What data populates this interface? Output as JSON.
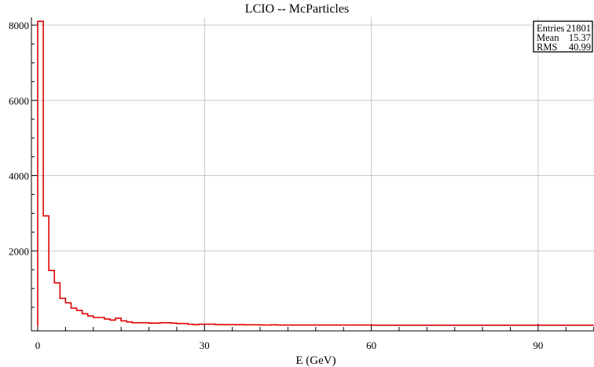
{
  "chart_data": {
    "type": "histogram",
    "title": "LCIO -- McParticles",
    "xlabel": "E (GeV)",
    "ylabel": "",
    "xlim": [
      0,
      100
    ],
    "ylim": [
      0,
      8100
    ],
    "x_ticks": [
      0,
      30,
      60,
      90
    ],
    "y_ticks": [
      2000,
      4000,
      6000,
      8000
    ],
    "grid": true,
    "line_color": "#e00000",
    "bin_width": 1,
    "bins_start": 0,
    "values": [
      8100,
      2930,
      1480,
      1150,
      740,
      620,
      480,
      420,
      330,
      270,
      230,
      230,
      190,
      160,
      210,
      140,
      110,
      90,
      90,
      90,
      80,
      80,
      90,
      90,
      80,
      70,
      70,
      50,
      40,
      50,
      50,
      50,
      40,
      40,
      40,
      40,
      40,
      35,
      35,
      35,
      30,
      30,
      35,
      30,
      30,
      30,
      30,
      30,
      30,
      30,
      30,
      30,
      30,
      30,
      30,
      30,
      30,
      30,
      30,
      30,
      25,
      25,
      25,
      25,
      25,
      25,
      25,
      25,
      25,
      25,
      25,
      25,
      25,
      25,
      25,
      25,
      25,
      25,
      25,
      25,
      25,
      25,
      25,
      25,
      25,
      25,
      25,
      25,
      25,
      25,
      25,
      25,
      25,
      25,
      25,
      25,
      25,
      25,
      25,
      25
    ],
    "stats": {
      "entries_label": "Entries",
      "entries_value": "21801",
      "mean_label": "Mean",
      "mean_value": "15.37",
      "rms_label": "RMS",
      "rms_value": "40.99"
    }
  }
}
